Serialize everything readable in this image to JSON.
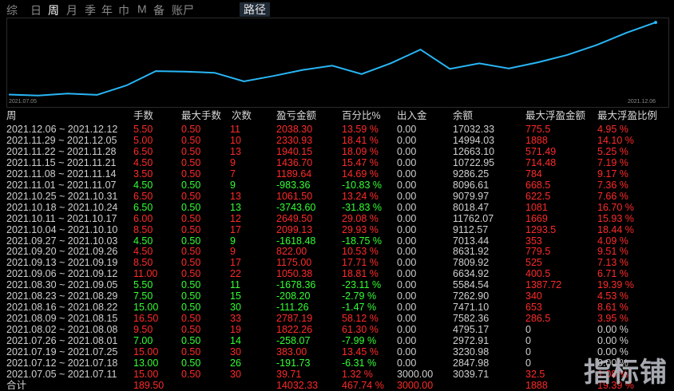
{
  "tabs": [
    "综",
    "日",
    "周",
    "月",
    "季",
    "年",
    "巾",
    "M",
    "备",
    "账尸"
  ],
  "active_tab": 2,
  "route_tab": "路径",
  "chart": {
    "start_date": "2021.07.05",
    "end_date": "2021.12.06",
    "line_color": "#29b6f6"
  },
  "table": {
    "headers": [
      "周",
      "手数",
      "最大手数",
      "次数",
      "盈亏金额",
      "百分比%",
      "出入金",
      "余额",
      "最大浮盈金额",
      "最大浮盈比例"
    ],
    "rows": [
      {
        "period": "2021.12.06 ~ 2021.12.12",
        "lots": "5.50",
        "max_lots": "0.50",
        "count": "11",
        "pnl": "2038.30",
        "pct": "13.59 %",
        "io": "0.00",
        "balance": "17032.33",
        "max_float": "775.5",
        "max_float_pct": "4.95 %"
      },
      {
        "period": "2021.11.29 ~ 2021.12.05",
        "lots": "5.00",
        "max_lots": "0.50",
        "count": "10",
        "pnl": "2330.93",
        "pct": "18.41 %",
        "io": "0.00",
        "balance": "14994.03",
        "max_float": "1888",
        "max_float_pct": "14.10 %"
      },
      {
        "period": "2021.11.22 ~ 2021.11.28",
        "lots": "6.50",
        "max_lots": "0.50",
        "count": "13",
        "pnl": "1940.15",
        "pct": "18.09 %",
        "io": "0.00",
        "balance": "12663.10",
        "max_float": "571.49",
        "max_float_pct": "5.25 %"
      },
      {
        "period": "2021.11.15 ~ 2021.11.21",
        "lots": "4.50",
        "max_lots": "0.50",
        "count": "9",
        "pnl": "1436.70",
        "pct": "15.47 %",
        "io": "0.00",
        "balance": "10722.95",
        "max_float": "714.48",
        "max_float_pct": "7.19 %"
      },
      {
        "period": "2021.11.08 ~ 2021.11.14",
        "lots": "3.50",
        "max_lots": "0.50",
        "count": "7",
        "pnl": "1189.64",
        "pct": "14.69 %",
        "io": "0.00",
        "balance": "9286.25",
        "max_float": "784",
        "max_float_pct": "9.17 %"
      },
      {
        "period": "2021.11.01 ~ 2021.11.07",
        "lots": "4.50",
        "max_lots": "0.50",
        "count": "9",
        "pnl": "-983.36",
        "pct": "-10.83 %",
        "io": "0.00",
        "balance": "8096.61",
        "max_float": "668.5",
        "max_float_pct": "7.36 %"
      },
      {
        "period": "2021.10.25 ~ 2021.10.31",
        "lots": "6.50",
        "max_lots": "0.50",
        "count": "13",
        "pnl": "1061.50",
        "pct": "13.24 %",
        "io": "0.00",
        "balance": "9079.97",
        "max_float": "622.5",
        "max_float_pct": "7.66 %"
      },
      {
        "period": "2021.10.18 ~ 2021.10.24",
        "lots": "6.50",
        "max_lots": "0.50",
        "count": "13",
        "pnl": "-3743.60",
        "pct": "-31.83 %",
        "io": "0.00",
        "balance": "8018.47",
        "max_float": "1081",
        "max_float_pct": "16.70 %"
      },
      {
        "period": "2021.10.11 ~ 2021.10.17",
        "lots": "6.00",
        "max_lots": "0.50",
        "count": "12",
        "pnl": "2649.50",
        "pct": "29.08 %",
        "io": "0.00",
        "balance": "11762.07",
        "max_float": "1669",
        "max_float_pct": "15.93 %"
      },
      {
        "period": "2021.10.04 ~ 2021.10.10",
        "lots": "8.50",
        "max_lots": "0.50",
        "count": "17",
        "pnl": "2099.13",
        "pct": "29.93 %",
        "io": "0.00",
        "balance": "9112.57",
        "max_float": "1293.5",
        "max_float_pct": "18.44 %"
      },
      {
        "period": "2021.09.27 ~ 2021.10.03",
        "lots": "4.50",
        "max_lots": "0.50",
        "count": "9",
        "pnl": "-1618.48",
        "pct": "-18.75 %",
        "io": "0.00",
        "balance": "7013.44",
        "max_float": "353",
        "max_float_pct": "4.09 %"
      },
      {
        "period": "2021.09.20 ~ 2021.09.26",
        "lots": "4.50",
        "max_lots": "0.50",
        "count": "9",
        "pnl": "822.00",
        "pct": "10.53 %",
        "io": "0.00",
        "balance": "8631.92",
        "max_float": "779.5",
        "max_float_pct": "9.51 %"
      },
      {
        "period": "2021.09.13 ~ 2021.09.19",
        "lots": "8.50",
        "max_lots": "0.50",
        "count": "17",
        "pnl": "1175.00",
        "pct": "17.71 %",
        "io": "0.00",
        "balance": "7809.92",
        "max_float": "525",
        "max_float_pct": "7.13 %"
      },
      {
        "period": "2021.09.06 ~ 2021.09.12",
        "lots": "11.00",
        "max_lots": "0.50",
        "count": "22",
        "pnl": "1050.38",
        "pct": "18.81 %",
        "io": "0.00",
        "balance": "6634.92",
        "max_float": "400.5",
        "max_float_pct": "6.71 %"
      },
      {
        "period": "2021.08.30 ~ 2021.09.05",
        "lots": "5.50",
        "max_lots": "0.50",
        "count": "11",
        "pnl": "-1678.36",
        "pct": "-23.11 %",
        "io": "0.00",
        "balance": "5584.54",
        "max_float": "1387.72",
        "max_float_pct": "19.39 %"
      },
      {
        "period": "2021.08.23 ~ 2021.08.29",
        "lots": "7.50",
        "max_lots": "0.50",
        "count": "15",
        "pnl": "-208.20",
        "pct": "-2.79 %",
        "io": "0.00",
        "balance": "7262.90",
        "max_float": "340",
        "max_float_pct": "4.53 %"
      },
      {
        "period": "2021.08.16 ~ 2021.08.22",
        "lots": "15.00",
        "max_lots": "0.50",
        "count": "30",
        "pnl": "-111.26",
        "pct": "-1.47 %",
        "io": "0.00",
        "balance": "7471.10",
        "max_float": "653",
        "max_float_pct": "8.61 %"
      },
      {
        "period": "2021.08.09 ~ 2021.08.15",
        "lots": "16.50",
        "max_lots": "0.50",
        "count": "33",
        "pnl": "2787.19",
        "pct": "58.12 %",
        "io": "0.00",
        "balance": "7582.36",
        "max_float": "286.5",
        "max_float_pct": "3.95 %"
      },
      {
        "period": "2021.08.02 ~ 2021.08.08",
        "lots": "9.50",
        "max_lots": "0.50",
        "count": "19",
        "pnl": "1822.26",
        "pct": "61.30 %",
        "io": "0.00",
        "balance": "4795.17",
        "max_float": "0",
        "max_float_pct": "0.00 %"
      },
      {
        "period": "2021.07.26 ~ 2021.08.01",
        "lots": "7.00",
        "max_lots": "0.50",
        "count": "14",
        "pnl": "-258.07",
        "pct": "-7.99 %",
        "io": "0.00",
        "balance": "2972.91",
        "max_float": "0",
        "max_float_pct": "0.00 %"
      },
      {
        "period": "2021.07.19 ~ 2021.07.25",
        "lots": "15.00",
        "max_lots": "0.50",
        "count": "30",
        "pnl": "383.00",
        "pct": "13.45 %",
        "io": "0.00",
        "balance": "3230.98",
        "max_float": "0",
        "max_float_pct": "0.00 %"
      },
      {
        "period": "2021.07.12 ~ 2021.07.18",
        "lots": "13.00",
        "max_lots": "0.50",
        "count": "26",
        "pnl": "-191.73",
        "pct": "-6.31 %",
        "io": "0.00",
        "balance": "2847.98",
        "max_float": "0",
        "max_float_pct": "0.00 %"
      },
      {
        "period": "2021.07.05 ~ 2021.07.11",
        "lots": "15.00",
        "max_lots": "0.50",
        "count": "30",
        "pnl": "39.71",
        "pct": "1.32 %",
        "io": "3000.00",
        "balance": "3039.71",
        "max_float": "32.5",
        "max_float_pct": "1.08 %"
      }
    ],
    "total": {
      "label": "合计",
      "lots": "189.50",
      "pnl": "14032.33",
      "pct": "467.74 %",
      "io": "3000.00",
      "max_float": "1888",
      "max_float_pct": "19.39 %"
    }
  },
  "watermark": "指标铺",
  "colors": {
    "positive": "#ff2a2a",
    "negative": "#33ff33",
    "neutral": "#d0d0d0",
    "line": "#29b6f6"
  }
}
